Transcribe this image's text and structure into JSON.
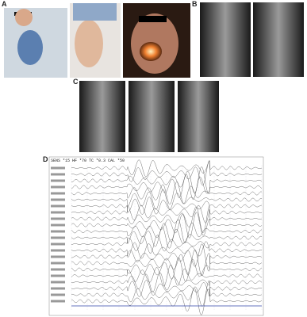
{
  "panels": [
    {
      "label": "A"
    },
    {
      "label": "B"
    },
    {
      "label": "C"
    },
    {
      "label": "D"
    }
  ],
  "eeg_header": "SENS *15  HF *70  TC *0.3  CAL *50"
}
